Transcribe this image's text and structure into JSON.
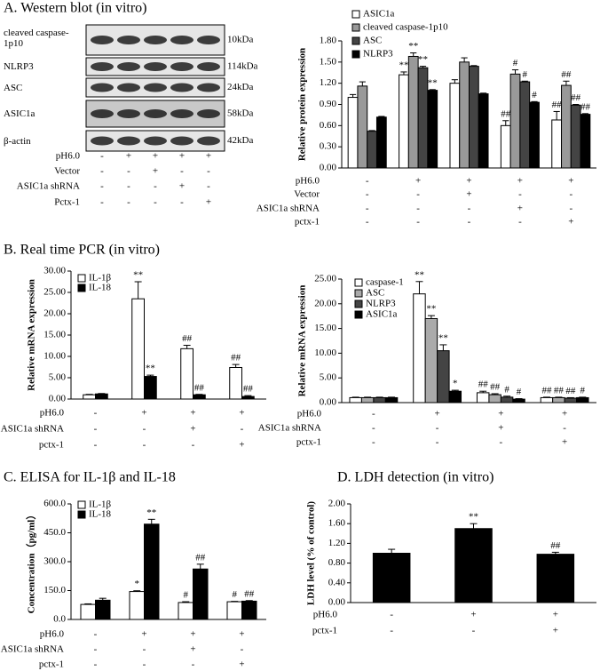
{
  "western_blot": {
    "title": "A. Western blot (in vitro)",
    "bands": [
      {
        "name": "cleaved caspase-1p10",
        "size": "10kDa"
      },
      {
        "name": "NLRP3",
        "size": "114kDa"
      },
      {
        "name": "ASC",
        "size": "24kDa"
      },
      {
        "name": "ASIC1a",
        "size": "58kDa"
      },
      {
        "name": "β-actin",
        "size": "42kDa"
      }
    ],
    "conditions": [
      {
        "name": "pH6.0",
        "marks": [
          "-",
          "+",
          "+",
          "+",
          "+"
        ]
      },
      {
        "name": "Vector",
        "marks": [
          "-",
          "-",
          "+",
          "-",
          "-"
        ]
      },
      {
        "name": "ASIC1a shRNA",
        "marks": [
          "-",
          "-",
          "-",
          "+",
          "-"
        ]
      },
      {
        "name": "Pctx-1",
        "marks": [
          "-",
          "-",
          "-",
          "-",
          "+"
        ]
      }
    ]
  },
  "chart_data": [
    {
      "type": "bar",
      "y_label": "Relative protein expression",
      "ylim": [
        0,
        1.8
      ],
      "yticks": [
        {
          "value": 0,
          "label": "0.00"
        },
        {
          "value": 0.3,
          "label": "0.30"
        },
        {
          "value": 0.6,
          "label": "0.60"
        },
        {
          "value": 0.9,
          "label": "0.90"
        },
        {
          "value": 1.2,
          "label": "1.20"
        },
        {
          "value": 1.5,
          "label": "1.50"
        },
        {
          "value": 1.8,
          "label": "1.80"
        }
      ],
      "series": [
        {
          "name": "ASIC1a",
          "color": "#ffffff",
          "values": [
            1.0,
            1.32,
            1.2,
            0.6,
            0.68
          ],
          "errors": [
            0.04,
            0.04,
            0.05,
            0.07,
            0.12
          ],
          "annotations": [
            null,
            "**",
            null,
            "##",
            "##"
          ]
        },
        {
          "name": "cleaved caspase-1p10",
          "color": "#999999",
          "values": [
            1.16,
            1.58,
            1.5,
            1.33,
            1.17
          ],
          "errors": [
            0.06,
            0.05,
            0.06,
            0.06,
            0.06
          ],
          "annotations": [
            null,
            "**",
            null,
            "#",
            "##"
          ]
        },
        {
          "name": "ASC",
          "color": "#444444",
          "values": [
            0.52,
            1.42,
            1.44,
            1.22,
            0.89
          ],
          "errors": [
            0.01,
            0.02,
            0.01,
            0.01,
            0.01
          ],
          "annotations": [
            null,
            "**",
            null,
            "#",
            "##"
          ]
        },
        {
          "name": "NLRP3",
          "color": "#000000",
          "values": [
            0.72,
            1.1,
            1.05,
            0.93,
            0.76
          ],
          "errors": [
            0.01,
            0.01,
            0.01,
            0.01,
            0.01
          ],
          "annotations": [
            null,
            "**",
            null,
            "#",
            "##"
          ]
        }
      ],
      "conditions": [
        {
          "name": "pH6.0",
          "marks": [
            "-",
            "+",
            "+",
            "+",
            "+"
          ]
        },
        {
          "name": "Vector",
          "marks": [
            "-",
            "-",
            "+",
            "-",
            "-"
          ]
        },
        {
          "name": "ASIC1a shRNA",
          "marks": [
            "-",
            "-",
            "-",
            "+",
            "-"
          ]
        },
        {
          "name": "pctx-1",
          "marks": [
            "-",
            "-",
            "-",
            "-",
            "+"
          ]
        }
      ]
    },
    {
      "type": "bar",
      "title": "B. Real time PCR (in vitro)",
      "y_label": "Relative mRNA expression",
      "ylim": [
        0,
        30
      ],
      "yticks": [
        {
          "value": 0,
          "label": "0.00"
        },
        {
          "value": 5,
          "label": "5.00"
        },
        {
          "value": 10,
          "label": "10.00"
        },
        {
          "value": 15,
          "label": "15.00"
        },
        {
          "value": 20,
          "label": "20.00"
        },
        {
          "value": 25,
          "label": "25.00"
        },
        {
          "value": 30,
          "label": "30.00"
        }
      ],
      "series": [
        {
          "name": "IL-1β",
          "color": "#ffffff",
          "values": [
            1.0,
            23.5,
            11.8,
            7.4
          ],
          "errors": [
            0.1,
            4,
            0.8,
            0.7
          ],
          "annotations": [
            null,
            "**",
            "##",
            "##"
          ]
        },
        {
          "name": "IL-18",
          "color": "#000000",
          "values": [
            1.2,
            5.3,
            1.0,
            0.6
          ],
          "errors": [
            0.1,
            0.3,
            0.1,
            0.2
          ],
          "annotations": [
            null,
            "**",
            "##",
            "##"
          ]
        }
      ],
      "conditions": [
        {
          "name": "pH6.0",
          "marks": [
            "-",
            "+",
            "+",
            "+"
          ]
        },
        {
          "name": "ASIC1a shRNA",
          "marks": [
            "-",
            "-",
            "+",
            "-"
          ]
        },
        {
          "name": "pctx-1",
          "marks": [
            "-",
            "-",
            "-",
            "+"
          ]
        }
      ]
    },
    {
      "type": "bar",
      "y_label": "Relative mRNA expression",
      "ylim": [
        0,
        25
      ],
      "yticks": [
        {
          "value": 0,
          "label": "0.00"
        },
        {
          "value": 5,
          "label": "5.00"
        },
        {
          "value": 10,
          "label": "10.00"
        },
        {
          "value": 15,
          "label": "15.00"
        },
        {
          "value": 20,
          "label": "20.00"
        },
        {
          "value": 25,
          "label": "25.00"
        }
      ],
      "series": [
        {
          "name": "caspase-1",
          "color": "#ffffff",
          "values": [
            1.0,
            22,
            2.0,
            1.0
          ],
          "errors": [
            0.1,
            2.5,
            0.3,
            0.1
          ],
          "annotations": [
            null,
            "**",
            "##",
            "##"
          ]
        },
        {
          "name": "ASC",
          "color": "#aaaaaa",
          "values": [
            1.0,
            17,
            1.6,
            1.0
          ],
          "errors": [
            0.1,
            0.6,
            0.2,
            0.1
          ],
          "annotations": [
            null,
            "**",
            "##",
            "##"
          ]
        },
        {
          "name": "NLRP3",
          "color": "#444444",
          "values": [
            1.0,
            10.5,
            1.1,
            0.9
          ],
          "errors": [
            0.1,
            1.2,
            0.2,
            0.1
          ],
          "annotations": [
            null,
            "**",
            "#",
            "##"
          ]
        },
        {
          "name": "ASIC1a",
          "color": "#000000",
          "values": [
            1.0,
            2.3,
            0.7,
            1.0
          ],
          "errors": [
            0.1,
            0.2,
            0.1,
            0.1
          ],
          "annotations": [
            null,
            "*",
            "#",
            "#"
          ]
        }
      ],
      "conditions": [
        {
          "name": "pH6.0",
          "marks": [
            "-",
            "+",
            "+",
            "+"
          ]
        },
        {
          "name": "ASIC1a shRNA",
          "marks": [
            "-",
            "-",
            "+",
            "-"
          ]
        },
        {
          "name": "pctx-1",
          "marks": [
            "-",
            "-",
            "-",
            "+"
          ]
        }
      ]
    },
    {
      "type": "bar",
      "title": "C. ELISA for IL-1β and IL-18",
      "y_label": "Concentration（pg/ml）",
      "ylim": [
        0,
        600
      ],
      "yticks": [
        {
          "value": 0,
          "label": "0.0"
        },
        {
          "value": 150,
          "label": "150.0"
        },
        {
          "value": 300,
          "label": "300.0"
        },
        {
          "value": 450,
          "label": "450.0"
        },
        {
          "value": 600,
          "label": "600.0"
        }
      ],
      "series": [
        {
          "name": "IL-1β",
          "color": "#ffffff",
          "values": [
            78,
            145,
            88,
            92
          ],
          "errors": [
            3,
            4,
            4,
            2
          ],
          "annotations": [
            null,
            "*",
            "#",
            "#"
          ]
        },
        {
          "name": "IL-18",
          "color": "#000000",
          "values": [
            100,
            495,
            262,
            95
          ],
          "errors": [
            10,
            25,
            25,
            3
          ],
          "annotations": [
            null,
            "**",
            "##",
            "##"
          ]
        }
      ],
      "conditions": [
        {
          "name": "pH6.0",
          "marks": [
            "-",
            "+",
            "+",
            "+"
          ]
        },
        {
          "name": "ASIC1a shRNA",
          "marks": [
            "-",
            "-",
            "+",
            "-"
          ]
        },
        {
          "name": "pctx-1",
          "marks": [
            "-",
            "-",
            "-",
            "+"
          ]
        }
      ]
    },
    {
      "type": "bar",
      "title": "D. LDH detection (in vitro)",
      "y_label": "LDH level (% of control)",
      "ylim": [
        0,
        2
      ],
      "yticks": [
        {
          "value": 0,
          "label": "0.00"
        },
        {
          "value": 0.4,
          "label": "0.40"
        },
        {
          "value": 0.8,
          "label": "0.80"
        },
        {
          "value": 1.2,
          "label": "1.20"
        },
        {
          "value": 1.6,
          "label": "1.60"
        },
        {
          "value": 2.0,
          "label": "2.00"
        }
      ],
      "series": [
        {
          "color": "#000000",
          "values": [
            1.0,
            1.5,
            0.98
          ],
          "errors": [
            0.08,
            0.1,
            0.04
          ],
          "annotations": [
            null,
            "**",
            "##"
          ]
        }
      ],
      "conditions": [
        {
          "name": "pH6.0",
          "marks": [
            "-",
            "+",
            "+"
          ]
        },
        {
          "name": "pctx-1",
          "marks": [
            "-",
            "-",
            "+"
          ]
        }
      ]
    }
  ]
}
